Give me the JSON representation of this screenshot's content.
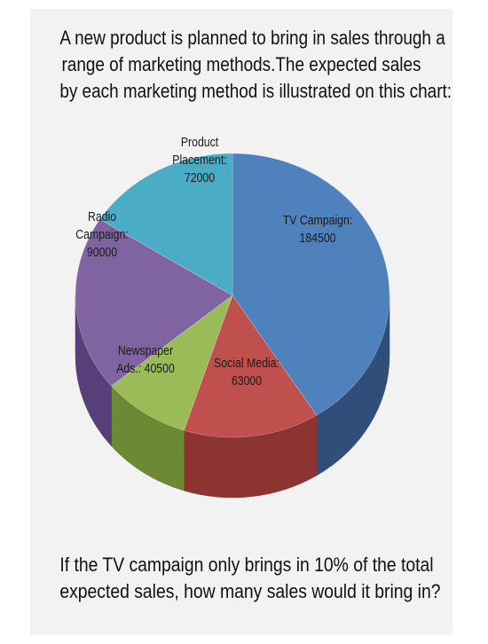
{
  "heading": {
    "lines": [
      "A new product is planned to bring in sales through a",
      "range of marketing methods.The expected sales",
      "by each marketing method is illustrated on this chart:"
    ]
  },
  "question": {
    "lines": [
      "If the TV campaign only brings in 10% of the total",
      "expected sales, how many sales would it bring in?"
    ]
  },
  "chart_data": {
    "type": "pie",
    "title": "",
    "slices": [
      {
        "label_lines": [
          "TV Campaign:",
          "184500"
        ],
        "value": 184500,
        "color": "#4f81bd",
        "side": "#2f4f7a"
      },
      {
        "label_lines": [
          "Social Media:",
          "63000"
        ],
        "value": 63000,
        "color": "#c0504d",
        "side": "#8c3432"
      },
      {
        "label_lines": [
          "Newspaper",
          "Ads.: 40500"
        ],
        "value": 40500,
        "color": "#9bbb59",
        "side": "#6b8a33"
      },
      {
        "label_lines": [
          "Radio",
          "Campaign:",
          "90000"
        ],
        "value": 90000,
        "color": "#8064a2",
        "side": "#57407a"
      },
      {
        "label_lines": [
          "Product",
          "Placement:",
          "72000"
        ],
        "value": 72000,
        "color": "#4bacc6",
        "side": "#2d7d92"
      }
    ]
  }
}
